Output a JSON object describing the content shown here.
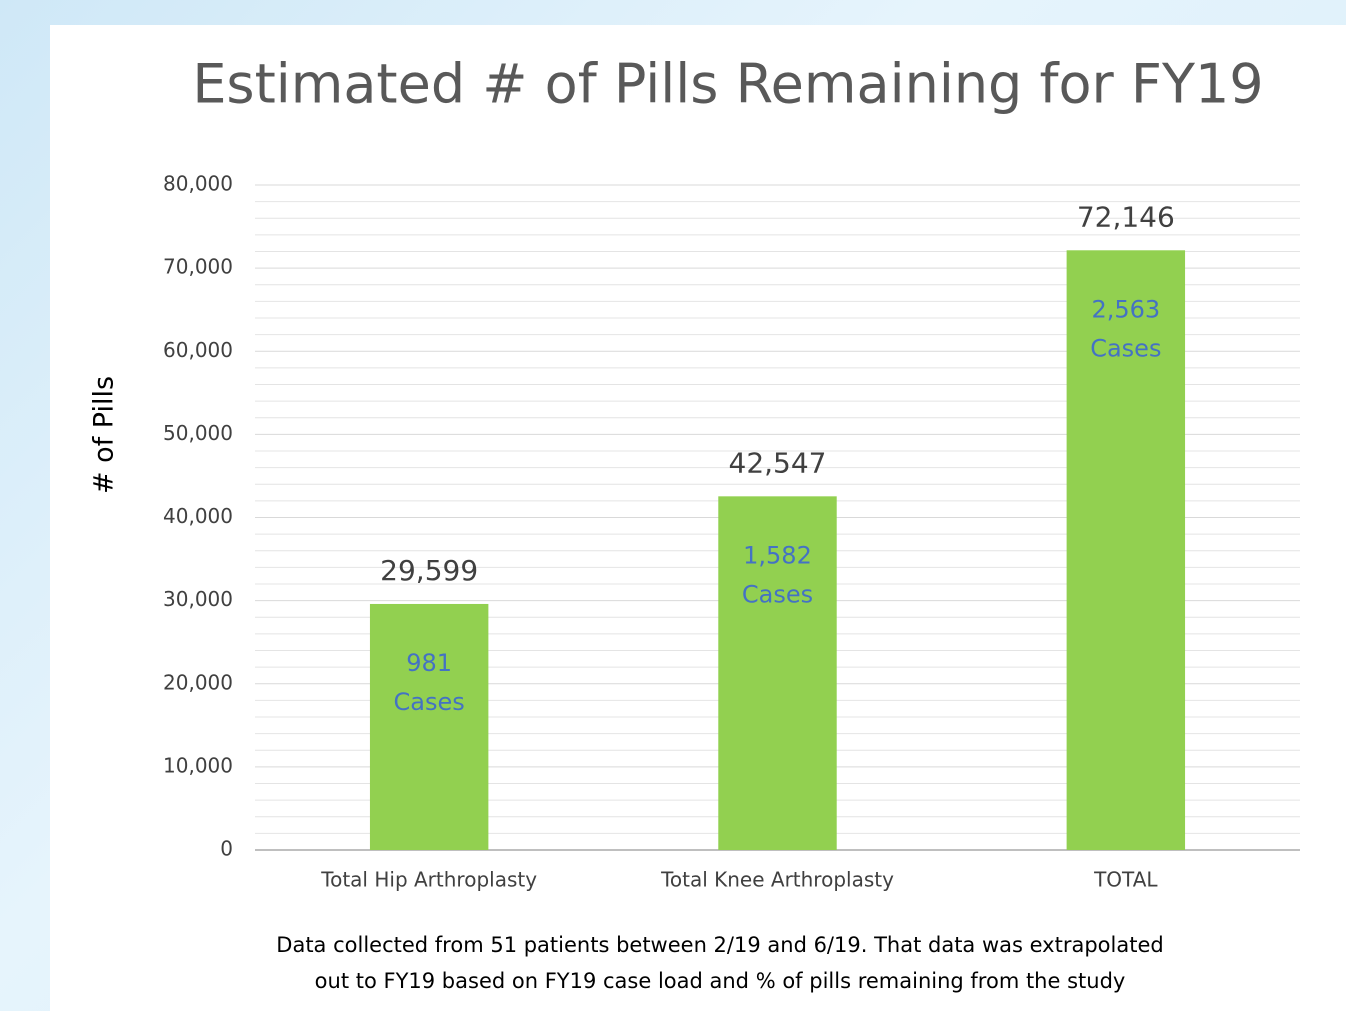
{
  "chart_data": {
    "type": "bar",
    "title": "Estimated # of Pills Remaining for FY19",
    "ylabel": "# of Pills",
    "categories": [
      "Total Hip Arthroplasty",
      "Total Knee Arthroplasty",
      "TOTAL"
    ],
    "values": [
      29599,
      42547,
      72146
    ],
    "value_labels": [
      "29,599",
      "42,547",
      "72,146"
    ],
    "bar_notes": [
      [
        "981",
        "Cases"
      ],
      [
        "1,582",
        "Cases"
      ],
      [
        "2,563",
        "Cases"
      ]
    ],
    "color": "#92d050",
    "note_color": "#4472c4",
    "ylim": [
      0,
      80000
    ],
    "yticks": [
      {
        "value": 0,
        "label": "0"
      },
      {
        "value": 10000,
        "label": "10,000"
      },
      {
        "value": 20000,
        "label": "20,000"
      },
      {
        "value": 30000,
        "label": "30,000"
      },
      {
        "value": 40000,
        "label": "40,000"
      },
      {
        "value": 50000,
        "label": "50,000"
      },
      {
        "value": 60000,
        "label": "60,000"
      },
      {
        "value": 70000,
        "label": "70,000"
      },
      {
        "value": 80000,
        "label": "80,000"
      }
    ],
    "minor_yticks": [
      2000,
      4000,
      6000,
      8000,
      12000,
      14000,
      16000,
      18000,
      22000,
      24000,
      26000,
      28000,
      32000,
      34000,
      36000,
      38000,
      42000,
      44000,
      46000,
      48000,
      52000,
      54000,
      56000,
      58000,
      62000,
      64000,
      66000,
      68000,
      72000,
      74000,
      76000,
      78000
    ],
    "grid": true,
    "footnote": [
      "Data collected from 51 patients between 2/19 and 6/19. That data was extrapolated",
      "out to FY19 based on FY19 case load and % of pills remaining from the study"
    ]
  }
}
